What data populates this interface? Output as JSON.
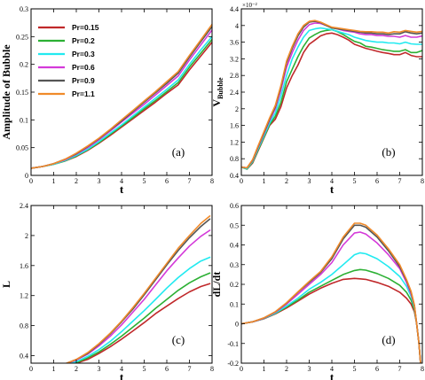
{
  "series_meta": [
    {
      "name": "Pr=0.15",
      "color": "#c0282a"
    },
    {
      "name": "Pr=0.2",
      "color": "#2cb034"
    },
    {
      "name": "Pr=0.3",
      "color": "#22eaf0"
    },
    {
      "name": "Pr=0.6",
      "color": "#d43ad9"
    },
    {
      "name": "Pr=0.9",
      "color": "#555555"
    },
    {
      "name": "Pr=1.1",
      "color": "#f08a2a"
    }
  ],
  "chart_data": [
    {
      "type": "line",
      "panel_label": "(a)",
      "xlabel": "t",
      "ylabel": "Amplitude of Bubble",
      "xlim": [
        0,
        8
      ],
      "ylim": [
        0,
        0.3
      ],
      "xticks": [
        0,
        1,
        2,
        3,
        4,
        5,
        6,
        7,
        8
      ],
      "yticks": [
        0,
        0.05,
        0.1,
        0.15,
        0.2,
        0.25,
        0.3
      ],
      "ytick_labels": [
        "0",
        "0.05",
        "0.1",
        "0.15",
        "0.2",
        "0.25",
        "0.3"
      ],
      "legend": "top-left",
      "x": [
        0,
        0.5,
        1,
        1.5,
        2,
        2.5,
        3,
        3.5,
        4,
        4.5,
        5,
        5.5,
        6,
        6.5,
        7,
        7.5,
        8
      ],
      "series": [
        {
          "name": "Pr=0.15",
          "values": [
            0.013,
            0.016,
            0.02,
            0.026,
            0.034,
            0.045,
            0.058,
            0.072,
            0.087,
            0.102,
            0.117,
            0.132,
            0.148,
            0.163,
            0.19,
            0.215,
            0.24
          ]
        },
        {
          "name": "Pr=0.2",
          "values": [
            0.013,
            0.016,
            0.02,
            0.026,
            0.035,
            0.046,
            0.059,
            0.074,
            0.089,
            0.104,
            0.12,
            0.135,
            0.151,
            0.167,
            0.195,
            0.22,
            0.245
          ]
        },
        {
          "name": "Pr=0.3",
          "values": [
            0.013,
            0.016,
            0.02,
            0.027,
            0.036,
            0.047,
            0.061,
            0.076,
            0.091,
            0.107,
            0.123,
            0.139,
            0.155,
            0.172,
            0.2,
            0.226,
            0.25
          ]
        },
        {
          "name": "Pr=0.6",
          "values": [
            0.013,
            0.016,
            0.021,
            0.028,
            0.038,
            0.05,
            0.064,
            0.08,
            0.096,
            0.112,
            0.128,
            0.145,
            0.162,
            0.179,
            0.208,
            0.235,
            0.262
          ]
        },
        {
          "name": "Pr=0.9",
          "values": [
            0.013,
            0.016,
            0.021,
            0.029,
            0.039,
            0.052,
            0.066,
            0.082,
            0.098,
            0.115,
            0.132,
            0.149,
            0.166,
            0.184,
            0.213,
            0.241,
            0.268
          ]
        },
        {
          "name": "Pr=1.1",
          "values": [
            0.013,
            0.016,
            0.021,
            0.029,
            0.04,
            0.053,
            0.067,
            0.083,
            0.1,
            0.117,
            0.134,
            0.151,
            0.169,
            0.187,
            0.216,
            0.244,
            0.272
          ]
        }
      ]
    },
    {
      "type": "line",
      "panel_label": "(b)",
      "xlabel": "t",
      "ylabel": "V",
      "ylabel_sub": "Bubble",
      "multiplier": "×10⁻²",
      "xlim": [
        0,
        8
      ],
      "ylim": [
        0.4,
        4.4
      ],
      "xticks": [
        0,
        1,
        2,
        3,
        4,
        5,
        6,
        7,
        8
      ],
      "yticks": [
        0.4,
        0.8,
        1.2,
        1.6,
        2,
        2.4,
        2.8,
        3.2,
        3.6,
        4,
        4.4
      ],
      "ytick_labels": [
        "0.4",
        "0.8",
        "1.2",
        "1.6",
        "2",
        "2.4",
        "2.8",
        "3.2",
        "3.6",
        "4",
        "4.4"
      ],
      "x": [
        0,
        0.25,
        0.5,
        0.75,
        1,
        1.25,
        1.5,
        1.75,
        2,
        2.25,
        2.5,
        2.75,
        3,
        3.25,
        3.5,
        3.75,
        4,
        4.25,
        4.5,
        4.75,
        5,
        5.25,
        5.5,
        5.75,
        6,
        6.25,
        6.5,
        6.75,
        7,
        7.25,
        7.5,
        7.75,
        8
      ],
      "series": [
        {
          "name": "Pr=0.15",
          "values": [
            0.6,
            0.55,
            0.7,
            1.0,
            1.3,
            1.6,
            1.75,
            2.05,
            2.5,
            2.8,
            3.05,
            3.35,
            3.55,
            3.65,
            3.75,
            3.8,
            3.82,
            3.78,
            3.72,
            3.65,
            3.55,
            3.5,
            3.45,
            3.42,
            3.38,
            3.35,
            3.33,
            3.3,
            3.3,
            3.35,
            3.28,
            3.25,
            3.25
          ]
        },
        {
          "name": "Pr=0.2",
          "values": [
            0.6,
            0.55,
            0.72,
            1.02,
            1.32,
            1.62,
            1.82,
            2.15,
            2.65,
            2.95,
            3.25,
            3.5,
            3.7,
            3.78,
            3.85,
            3.88,
            3.9,
            3.85,
            3.78,
            3.7,
            3.62,
            3.58,
            3.5,
            3.48,
            3.45,
            3.42,
            3.4,
            3.38,
            3.38,
            3.42,
            3.35,
            3.35,
            3.4
          ]
        },
        {
          "name": "Pr=0.3",
          "values": [
            0.6,
            0.56,
            0.74,
            1.05,
            1.35,
            1.66,
            1.9,
            2.3,
            2.8,
            3.2,
            3.48,
            3.72,
            3.88,
            3.92,
            3.94,
            3.92,
            3.9,
            3.86,
            3.82,
            3.78,
            3.72,
            3.68,
            3.64,
            3.62,
            3.6,
            3.6,
            3.58,
            3.58,
            3.56,
            3.6,
            3.56,
            3.55,
            3.55
          ]
        },
        {
          "name": "Pr=0.6",
          "values": [
            0.6,
            0.58,
            0.76,
            1.08,
            1.4,
            1.72,
            2.0,
            2.45,
            3.0,
            3.35,
            3.65,
            3.88,
            4.02,
            4.06,
            4.05,
            4.0,
            3.95,
            3.92,
            3.88,
            3.86,
            3.84,
            3.8,
            3.78,
            3.78,
            3.76,
            3.76,
            3.74,
            3.74,
            3.72,
            3.76,
            3.72,
            3.72,
            3.75
          ]
        },
        {
          "name": "Pr=0.9",
          "values": [
            0.6,
            0.58,
            0.77,
            1.1,
            1.42,
            1.75,
            2.05,
            2.52,
            3.1,
            3.45,
            3.75,
            3.96,
            4.08,
            4.1,
            4.07,
            4.0,
            3.94,
            3.92,
            3.9,
            3.88,
            3.86,
            3.84,
            3.82,
            3.82,
            3.8,
            3.8,
            3.78,
            3.8,
            3.8,
            3.85,
            3.82,
            3.8,
            3.82
          ]
        },
        {
          "name": "Pr=1.1",
          "values": [
            0.6,
            0.58,
            0.78,
            1.12,
            1.45,
            1.78,
            2.08,
            2.56,
            3.15,
            3.5,
            3.8,
            4.0,
            4.1,
            4.12,
            4.08,
            4.02,
            3.96,
            3.94,
            3.92,
            3.9,
            3.88,
            3.86,
            3.85,
            3.85,
            3.84,
            3.84,
            3.82,
            3.85,
            3.84,
            3.88,
            3.86,
            3.84,
            3.86
          ]
        }
      ]
    },
    {
      "type": "line",
      "panel_label": "(c)",
      "xlabel": "t",
      "ylabel": "L",
      "xlim": [
        0,
        8
      ],
      "ylim": [
        0.3,
        2.4
      ],
      "xticks": [
        0,
        1,
        2,
        3,
        4,
        5,
        6,
        7,
        8
      ],
      "yticks": [
        0.4,
        0.8,
        1.2,
        1.6,
        2,
        2.4
      ],
      "ytick_labels": [
        "0.4",
        "0.8",
        "1.2",
        "1.6",
        "2",
        "2.4"
      ],
      "x": [
        0,
        0.5,
        1,
        1.5,
        2,
        2.5,
        3,
        3.5,
        4,
        4.5,
        5,
        5.5,
        6,
        6.5,
        7,
        7.5,
        7.9
      ],
      "series": [
        {
          "name": "Pr=0.15",
          "values": [
            0.25,
            0.25,
            0.26,
            0.27,
            0.3,
            0.35,
            0.43,
            0.52,
            0.62,
            0.73,
            0.84,
            0.96,
            1.06,
            1.16,
            1.25,
            1.32,
            1.36
          ]
        },
        {
          "name": "Pr=0.2",
          "values": [
            0.25,
            0.25,
            0.26,
            0.28,
            0.31,
            0.37,
            0.45,
            0.55,
            0.66,
            0.78,
            0.9,
            1.03,
            1.15,
            1.27,
            1.37,
            1.45,
            1.5
          ]
        },
        {
          "name": "Pr=0.3",
          "values": [
            0.25,
            0.25,
            0.26,
            0.28,
            0.32,
            0.39,
            0.48,
            0.59,
            0.72,
            0.86,
            1.0,
            1.15,
            1.3,
            1.44,
            1.56,
            1.66,
            1.71
          ]
        },
        {
          "name": "Pr=0.6",
          "values": [
            0.25,
            0.25,
            0.26,
            0.29,
            0.34,
            0.42,
            0.53,
            0.66,
            0.81,
            0.98,
            1.15,
            1.34,
            1.53,
            1.7,
            1.86,
            1.99,
            2.07
          ]
        },
        {
          "name": "Pr=0.9",
          "values": [
            0.25,
            0.25,
            0.26,
            0.29,
            0.35,
            0.43,
            0.55,
            0.69,
            0.85,
            1.02,
            1.21,
            1.41,
            1.61,
            1.8,
            1.97,
            2.12,
            2.22
          ]
        },
        {
          "name": "Pr=1.1",
          "values": [
            0.25,
            0.25,
            0.26,
            0.29,
            0.35,
            0.44,
            0.56,
            0.7,
            0.86,
            1.04,
            1.23,
            1.43,
            1.63,
            1.83,
            2.0,
            2.16,
            2.26
          ]
        }
      ]
    },
    {
      "type": "line",
      "panel_label": "(d)",
      "xlabel": "t",
      "ylabel": "dL/dt",
      "xlim": [
        0,
        8
      ],
      "ylim": [
        -0.2,
        0.6
      ],
      "xticks": [
        0,
        1,
        2,
        3,
        4,
        5,
        6,
        7,
        8
      ],
      "yticks": [
        -0.2,
        -0.1,
        0,
        0.1,
        0.2,
        0.3,
        0.4,
        0.5,
        0.6
      ],
      "ytick_labels": [
        "-0.2",
        "-0.1",
        "0",
        "0.1",
        "0.2",
        "0.3",
        "0.4",
        "0.5",
        "0.6"
      ],
      "x": [
        0,
        0.5,
        1,
        1.5,
        2,
        2.5,
        3,
        3.5,
        4,
        4.5,
        5,
        5.25,
        5.5,
        6,
        6.5,
        7,
        7.3,
        7.5,
        7.65,
        7.75,
        7.85,
        7.92
      ],
      "series": [
        {
          "name": "Pr=0.15",
          "values": [
            0.0,
            0.01,
            0.025,
            0.05,
            0.08,
            0.115,
            0.15,
            0.18,
            0.205,
            0.225,
            0.23,
            0.228,
            0.225,
            0.21,
            0.19,
            0.16,
            0.13,
            0.1,
            0.06,
            0.0,
            -0.1,
            -0.2
          ]
        },
        {
          "name": "Pr=0.2",
          "values": [
            0.0,
            0.01,
            0.026,
            0.052,
            0.085,
            0.12,
            0.16,
            0.19,
            0.22,
            0.25,
            0.27,
            0.275,
            0.272,
            0.255,
            0.23,
            0.195,
            0.16,
            0.12,
            0.07,
            0.0,
            -0.1,
            -0.2
          ]
        },
        {
          "name": "Pr=0.3",
          "values": [
            0.0,
            0.01,
            0.027,
            0.054,
            0.09,
            0.13,
            0.175,
            0.21,
            0.25,
            0.3,
            0.35,
            0.36,
            0.355,
            0.33,
            0.29,
            0.24,
            0.19,
            0.14,
            0.08,
            0.0,
            -0.1,
            -0.2
          ]
        },
        {
          "name": "Pr=0.6",
          "values": [
            0.0,
            0.01,
            0.028,
            0.058,
            0.1,
            0.15,
            0.2,
            0.25,
            0.31,
            0.4,
            0.46,
            0.465,
            0.455,
            0.41,
            0.35,
            0.28,
            0.21,
            0.15,
            0.09,
            0.0,
            -0.1,
            -0.2
          ]
        },
        {
          "name": "Pr=0.9",
          "values": [
            0.0,
            0.01,
            0.029,
            0.06,
            0.105,
            0.16,
            0.21,
            0.26,
            0.33,
            0.43,
            0.5,
            0.5,
            0.49,
            0.44,
            0.37,
            0.29,
            0.22,
            0.16,
            0.09,
            0.0,
            -0.1,
            -0.2
          ]
        },
        {
          "name": "Pr=1.1",
          "values": [
            0.0,
            0.01,
            0.03,
            0.061,
            0.107,
            0.162,
            0.215,
            0.265,
            0.34,
            0.44,
            0.51,
            0.51,
            0.5,
            0.45,
            0.38,
            0.3,
            0.225,
            0.165,
            0.095,
            0.0,
            -0.1,
            -0.2
          ]
        }
      ]
    }
  ]
}
